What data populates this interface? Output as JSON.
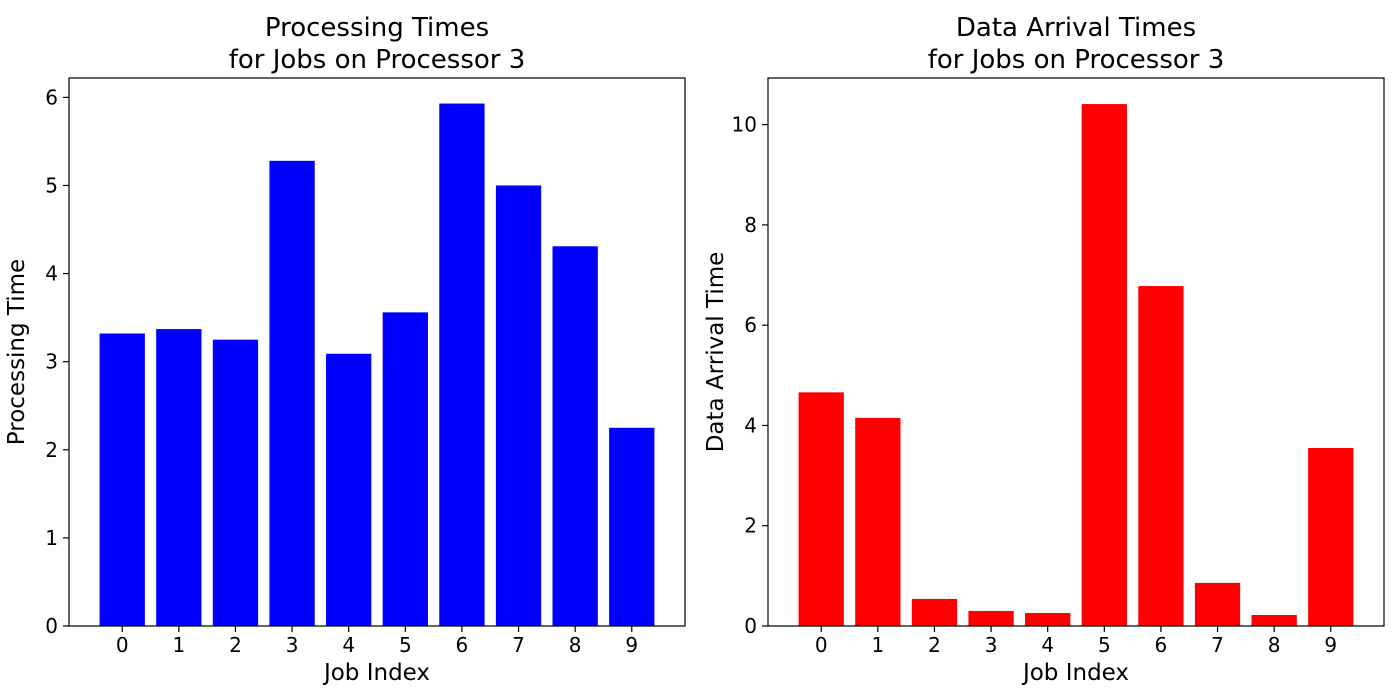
{
  "chart_data": [
    {
      "type": "bar",
      "title": [
        "Processing Times",
        "for Jobs on Processor 3"
      ],
      "xlabel": "Job Index",
      "ylabel": "Processing Time",
      "categories": [
        "0",
        "1",
        "2",
        "3",
        "4",
        "5",
        "6",
        "7",
        "8",
        "9"
      ],
      "values": [
        3.32,
        3.37,
        3.25,
        5.28,
        3.09,
        3.56,
        5.93,
        5.0,
        4.31,
        2.25
      ],
      "ylim": [
        0,
        6.22
      ],
      "yticks": [
        0,
        1,
        2,
        3,
        4,
        5,
        6
      ],
      "color": "#0000ff",
      "grid": false
    },
    {
      "type": "bar",
      "title": [
        "Data Arrival Times",
        "for Jobs on Processor 3"
      ],
      "xlabel": "Job Index",
      "ylabel": "Data Arrival Time",
      "categories": [
        "0",
        "1",
        "2",
        "3",
        "4",
        "5",
        "6",
        "7",
        "8",
        "9"
      ],
      "values": [
        4.66,
        4.15,
        0.54,
        0.3,
        0.26,
        10.41,
        6.78,
        0.86,
        0.22,
        3.55
      ],
      "ylim": [
        0,
        10.93
      ],
      "yticks": [
        0,
        2,
        4,
        6,
        8,
        10
      ],
      "color": "#ff0000",
      "grid": false
    }
  ]
}
